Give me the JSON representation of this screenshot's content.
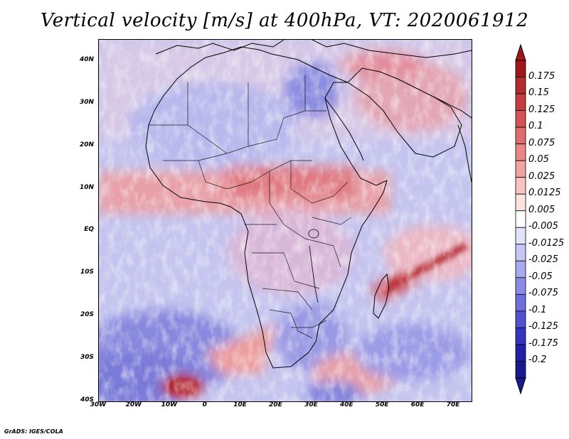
{
  "title": "Vertical velocity [m/s] at 400hPa, VT: 2020061912",
  "credit": "GrADS: IGES/COLA",
  "map": {
    "lat_labels": [
      "40N",
      "30N",
      "20N",
      "10N",
      "EQ",
      "10S",
      "20S",
      "30S",
      "40S"
    ],
    "lat_values": [
      40,
      30,
      20,
      10,
      0,
      -10,
      -20,
      -30,
      -40
    ],
    "lon_labels": [
      "30W",
      "20W",
      "10W",
      "0",
      "10E",
      "20E",
      "30E",
      "40E",
      "50E",
      "60E",
      "70E"
    ],
    "lon_values": [
      -30,
      -20,
      -10,
      0,
      10,
      20,
      30,
      40,
      50,
      60,
      70
    ],
    "lat_range": [
      -40,
      45
    ],
    "lon_range": [
      -30,
      75
    ]
  },
  "colorbar": {
    "labels": [
      "0.175",
      "0.15",
      "0.125",
      "0.1",
      "0.075",
      "0.05",
      "0.025",
      "0.0125",
      "0.005",
      "-0.005",
      "-0.0125",
      "-0.025",
      "-0.05",
      "-0.075",
      "-0.1",
      "-0.125",
      "-0.175",
      "-0.2"
    ],
    "colors": [
      "#a0161a",
      "#b52a2e",
      "#c53d40",
      "#d45456",
      "#e06c6c",
      "#ea8785",
      "#f2a3a0",
      "#f8c3c0",
      "#fde2e0",
      "#ffffff",
      "#e2e2fb",
      "#c6c6f5",
      "#a9a9ee",
      "#8c8ce6",
      "#6f6fdc",
      "#5252d0",
      "#3535c0",
      "#2020a8",
      "#1a1a90"
    ]
  }
}
